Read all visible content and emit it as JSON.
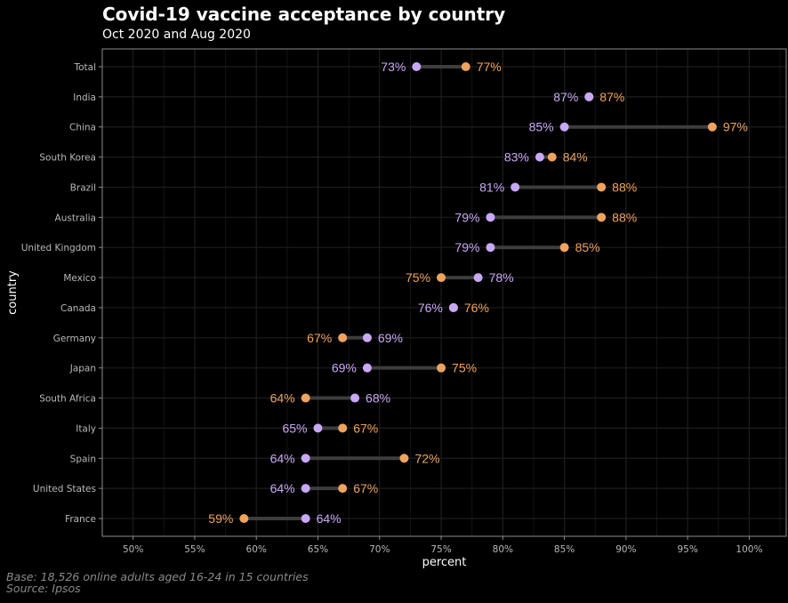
{
  "chart_data": {
    "type": "dumbbell",
    "title": "Covid-19 vaccine acceptance by country",
    "subtitle": "Oct 2020 and Aug 2020",
    "xlabel": "percent",
    "ylabel": "country",
    "xlim": [
      47.5,
      103
    ],
    "xticks": [
      50,
      55,
      60,
      65,
      70,
      75,
      80,
      85,
      90,
      95,
      100
    ],
    "xtick_labels": [
      "50%",
      "55%",
      "60%",
      "65%",
      "70%",
      "75%",
      "80%",
      "85%",
      "90%",
      "95%",
      "100%"
    ],
    "grid": true,
    "legend": "none",
    "categories": [
      "Total",
      "India",
      "China",
      "South Korea",
      "Brazil",
      "Australia",
      "United Kingdom",
      "Mexico",
      "Canada",
      "Germany",
      "Japan",
      "South Africa",
      "Italy",
      "Spain",
      "United States",
      "France"
    ],
    "series": [
      {
        "name": "Oct 2020",
        "color": "#c9a8f5",
        "values": [
          73,
          87,
          85,
          83,
          81,
          79,
          79,
          78,
          76,
          69,
          69,
          68,
          65,
          64,
          64,
          64
        ]
      },
      {
        "name": "Aug 2020",
        "color": "#f0a35e",
        "values": [
          77,
          87,
          97,
          84,
          88,
          88,
          85,
          75,
          76,
          67,
          75,
          64,
          67,
          72,
          67,
          59
        ]
      }
    ],
    "caption": [
      "Base: 18,526 online adults aged 16-24 in 15 countries",
      "Source: Ipsos"
    ]
  },
  "colors": {
    "background": "#000000",
    "segment": "#3d3d3d",
    "grid": "#1e1e1e",
    "border": "#8c8c8c"
  }
}
